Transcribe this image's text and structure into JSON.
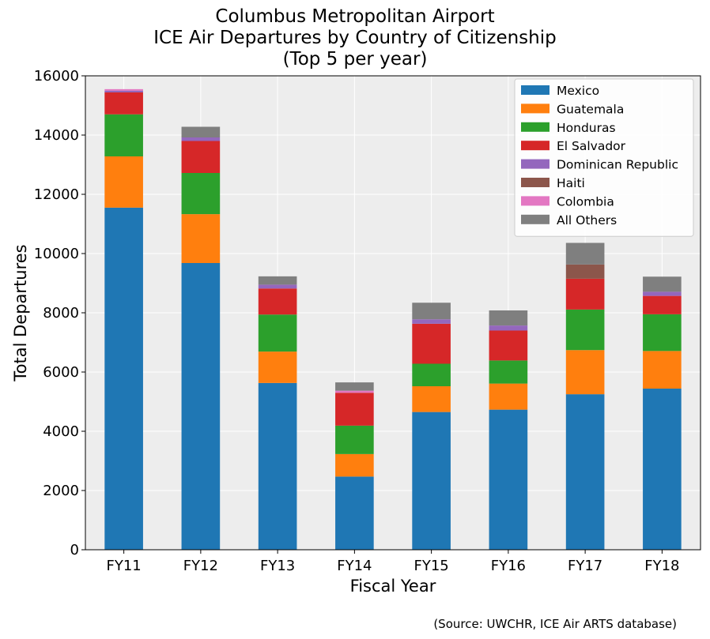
{
  "chart_data": {
    "type": "bar",
    "stacked": true,
    "title": [
      "Columbus Metropolitan Airport",
      "ICE Air Departures by Country of Citizenship",
      "(Top 5 per year)"
    ],
    "xlabel": "Fiscal Year",
    "ylabel": "Total Departures",
    "ylim": [
      0,
      16000
    ],
    "yticks": [
      0,
      2000,
      4000,
      6000,
      8000,
      10000,
      12000,
      14000,
      16000
    ],
    "grid": true,
    "legend_position": "top-right",
    "categories": [
      "FY11",
      "FY12",
      "FY13",
      "FY14",
      "FY15",
      "FY16",
      "FY17",
      "FY18"
    ],
    "series": [
      {
        "name": "Mexico",
        "color": "#1f77b4",
        "values": [
          11550,
          9680,
          5630,
          2470,
          4650,
          4730,
          5250,
          5440
        ]
      },
      {
        "name": "Guatemala",
        "color": "#ff7f0e",
        "values": [
          1730,
          1650,
          1060,
          760,
          870,
          880,
          1490,
          1270
        ]
      },
      {
        "name": "Honduras",
        "color": "#2ca02c",
        "values": [
          1420,
          1390,
          1250,
          960,
          760,
          780,
          1370,
          1240
        ]
      },
      {
        "name": "El Salvador",
        "color": "#d62728",
        "values": [
          740,
          1080,
          880,
          1110,
          1350,
          1010,
          1040,
          620
        ]
      },
      {
        "name": "Dominican Republic",
        "color": "#9467bd",
        "values": [
          60,
          120,
          130,
          0,
          150,
          170,
          0,
          140
        ]
      },
      {
        "name": "Haiti",
        "color": "#8c564b",
        "values": [
          0,
          0,
          0,
          0,
          0,
          0,
          480,
          0
        ]
      },
      {
        "name": "Colombia",
        "color": "#e377c2",
        "values": [
          50,
          0,
          0,
          70,
          0,
          0,
          0,
          0
        ]
      },
      {
        "name": "All Others",
        "color": "#7f7f7f",
        "values": [
          0,
          360,
          280,
          280,
          560,
          510,
          730,
          510
        ]
      }
    ]
  },
  "source_note": "(Source: UWCHR, ICE Air ARTS database)"
}
